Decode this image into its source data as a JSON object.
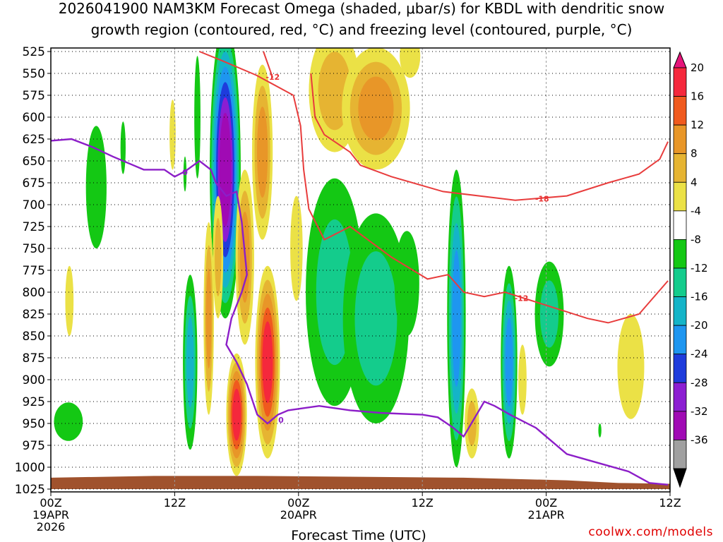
{
  "title_line1": "2026041900 NAM3KM Forecast Omega (shaded, μbar/s) for KBDL with dendritic snow",
  "title_line2": "growth region (contoured, red, °C) and freezing level (contoured, purple, °C)",
  "credit": "coolwx.com/models",
  "chart_data": {
    "type": "heatmap",
    "title": "2026041900 NAM3KM Forecast Omega (shaded, μbar/s) for KBDL with dendritic snow growth region (contoured, red, °C) and freezing level (contoured, purple, °C)",
    "xlabel": "Forecast Time (UTC)",
    "ylabel": "Pressure (hPa)",
    "x_range_hours": [
      0,
      60
    ],
    "y_range_hpa": [
      1025,
      525
    ],
    "x_ticks": [
      {
        "hour": 0,
        "label": "00Z",
        "sub1": "19APR",
        "sub2": "2026"
      },
      {
        "hour": 12,
        "label": "12Z",
        "sub1": "",
        "sub2": ""
      },
      {
        "hour": 24,
        "label": "00Z",
        "sub1": "20APR",
        "sub2": ""
      },
      {
        "hour": 36,
        "label": "12Z",
        "sub1": "",
        "sub2": ""
      },
      {
        "hour": 48,
        "label": "00Z",
        "sub1": "21APR",
        "sub2": ""
      },
      {
        "hour": 60,
        "label": "12Z",
        "sub1": "",
        "sub2": ""
      }
    ],
    "y_ticks": [
      "525",
      "550",
      "575",
      "600",
      "625",
      "650",
      "675",
      "700",
      "725",
      "750",
      "775",
      "800",
      "825",
      "850",
      "875",
      "900",
      "925",
      "950",
      "975",
      "1000",
      "1025"
    ],
    "colorbar": {
      "labels": [
        "20",
        "16",
        "12",
        "8",
        "4",
        "-4",
        "-8",
        "-12",
        "-16",
        "-20",
        "-24",
        "-28",
        "-32",
        "-36"
      ],
      "bins": [
        {
          "lo": 16,
          "hi": 20,
          "color": "#f5283c"
        },
        {
          "lo": 12,
          "hi": 16,
          "color": "#f05a1e"
        },
        {
          "lo": 8,
          "hi": 12,
          "color": "#e89628"
        },
        {
          "lo": 4,
          "hi": 8,
          "color": "#e6b432"
        },
        {
          "lo": 0,
          "hi": 4,
          "color": "#ebe146"
        },
        {
          "lo": -4,
          "hi": 0,
          "color": "#ffffff"
        },
        {
          "lo": -8,
          "hi": -4,
          "color": "#14c814"
        },
        {
          "lo": -12,
          "hi": -8,
          "color": "#14cc8c"
        },
        {
          "lo": -16,
          "hi": -12,
          "color": "#14b4c8"
        },
        {
          "lo": -20,
          "hi": -16,
          "color": "#1e96f0"
        },
        {
          "lo": -24,
          "hi": -20,
          "color": "#1e3cdc"
        },
        {
          "lo": -28,
          "hi": -24,
          "color": "#8c1ed2"
        },
        {
          "lo": -32,
          "hi": -28,
          "color": "#a00ab4"
        },
        {
          "lo": -36,
          "hi": -32,
          "color": "#a0a0a0"
        }
      ],
      "top_color": "#e6147a",
      "bottom_color": "#000000"
    },
    "omega_regions": [
      {
        "name": "Ascent tower 16Z (core)",
        "hour_range": [
          16.2,
          18.0
        ],
        "p_range": [
          525,
          630
        ],
        "min_value": -36
      },
      {
        "name": "Ascent near 19Z",
        "hour_range": [
          15.5,
          18.5
        ],
        "p_range": [
          525,
          980
        ],
        "min_value": -28
      },
      {
        "name": "Upward motion 00Z-12Z 20APR",
        "hour_range": [
          24,
          36
        ],
        "p_range": [
          670,
          950
        ],
        "min_value": -14
      },
      {
        "name": "Upward motion 15Z 20APR",
        "hour_range": [
          38.8,
          40.5
        ],
        "p_range": [
          660,
          990
        ],
        "min_value": -22
      },
      {
        "name": "Upward motion 21Z 20APR",
        "hour_range": [
          43.5,
          45.5
        ],
        "p_range": [
          780,
          990
        ],
        "min_value": -20
      },
      {
        "name": "Subsidence 18Z-20Z 19APR",
        "hour_range": [
          17,
          22
        ],
        "p_range": [
          540,
          1000
        ],
        "max_value": 18
      },
      {
        "name": "Subsidence aloft 01Z-10Z 20APR",
        "hour_range": [
          25,
          34
        ],
        "p_range": [
          525,
          600
        ],
        "max_value": 10
      },
      {
        "name": "Subsidence near 08Z 21APR",
        "hour_range": [
          54.5,
          57
        ],
        "p_range": [
          830,
          970
        ],
        "max_value": 6
      }
    ],
    "series": [
      {
        "name": "Isotherm -12 C (red)",
        "label": "-12",
        "points": [
          [
            14.4,
            525
          ],
          [
            16.5,
            535
          ],
          [
            19.9,
            552
          ],
          [
            23.5,
            575
          ],
          [
            24.2,
            610
          ],
          [
            24.5,
            660
          ],
          [
            25,
            705
          ],
          [
            26.5,
            740
          ],
          [
            29,
            725
          ],
          [
            33,
            760
          ],
          [
            36.5,
            785
          ],
          [
            38.5,
            780
          ],
          [
            40,
            800
          ],
          [
            42,
            805
          ],
          [
            44,
            800
          ],
          [
            48,
            815
          ],
          [
            52,
            830
          ],
          [
            54,
            835
          ],
          [
            57,
            825
          ],
          [
            59.8,
            787
          ]
        ]
      },
      {
        "name": "Isotherm -12 C upper (red)",
        "label": "-12",
        "points": [
          [
            20.6,
            525
          ],
          [
            21.5,
            555
          ]
        ]
      },
      {
        "name": "Isotherm -18 C (red)",
        "label": "-18",
        "points": [
          [
            25.2,
            550
          ],
          [
            25.6,
            600
          ],
          [
            26.5,
            620
          ],
          [
            29,
            640
          ],
          [
            30,
            655
          ],
          [
            33,
            668
          ],
          [
            38,
            685
          ],
          [
            45,
            695
          ],
          [
            50,
            690
          ],
          [
            54,
            675
          ],
          [
            57,
            665
          ],
          [
            59,
            648
          ],
          [
            59.8,
            628
          ]
        ]
      },
      {
        "name": "Freezing level 0 C (purple)",
        "label": "0",
        "points": [
          [
            0,
            627
          ],
          [
            2,
            625
          ],
          [
            4,
            634
          ],
          [
            6,
            645
          ],
          [
            8,
            655
          ],
          [
            9,
            660
          ],
          [
            11,
            660
          ],
          [
            12,
            668
          ],
          [
            13,
            662
          ],
          [
            14.4,
            650
          ],
          [
            15.5,
            660
          ],
          [
            16,
            675
          ],
          [
            17,
            690
          ],
          [
            18,
            685
          ],
          [
            18.5,
            720
          ],
          [
            19,
            780
          ],
          [
            18.5,
            800
          ],
          [
            17.5,
            830
          ],
          [
            17,
            860
          ],
          [
            18,
            880
          ],
          [
            19,
            905
          ],
          [
            20,
            940
          ],
          [
            21,
            950
          ],
          [
            22,
            940
          ],
          [
            23,
            935
          ],
          [
            26,
            930
          ],
          [
            29,
            935
          ],
          [
            32,
            938
          ],
          [
            36,
            940
          ],
          [
            37.5,
            943
          ],
          [
            39,
            955
          ],
          [
            40,
            965
          ],
          [
            41,
            945
          ],
          [
            42,
            925
          ],
          [
            43,
            930
          ],
          [
            44.5,
            940
          ],
          [
            47,
            955
          ],
          [
            50,
            985
          ],
          [
            53,
            995
          ],
          [
            56,
            1005
          ],
          [
            58,
            1018
          ],
          [
            59.8,
            1020
          ]
        ]
      }
    ],
    "terrain_top_hpa": [
      [
        0,
        1012
      ],
      [
        10,
        1010
      ],
      [
        20,
        1010
      ],
      [
        30,
        1011
      ],
      [
        40,
        1012
      ],
      [
        50,
        1015
      ],
      [
        55,
        1018
      ],
      [
        60,
        1019
      ]
    ],
    "contour_labels": [
      {
        "text": "-12",
        "hour": 21.5,
        "p": 554,
        "color": "#e83232"
      },
      {
        "text": "-18",
        "hour": 47.6,
        "p": 693,
        "color": "#e83232"
      },
      {
        "text": "-12",
        "hour": 45.6,
        "p": 807,
        "color": "#e83232"
      },
      {
        "text": "0",
        "hour": 13,
        "p": 663,
        "color": "#8c1ec8"
      },
      {
        "text": "0",
        "hour": 22.3,
        "p": 946,
        "color": "#8c1ec8"
      }
    ]
  }
}
